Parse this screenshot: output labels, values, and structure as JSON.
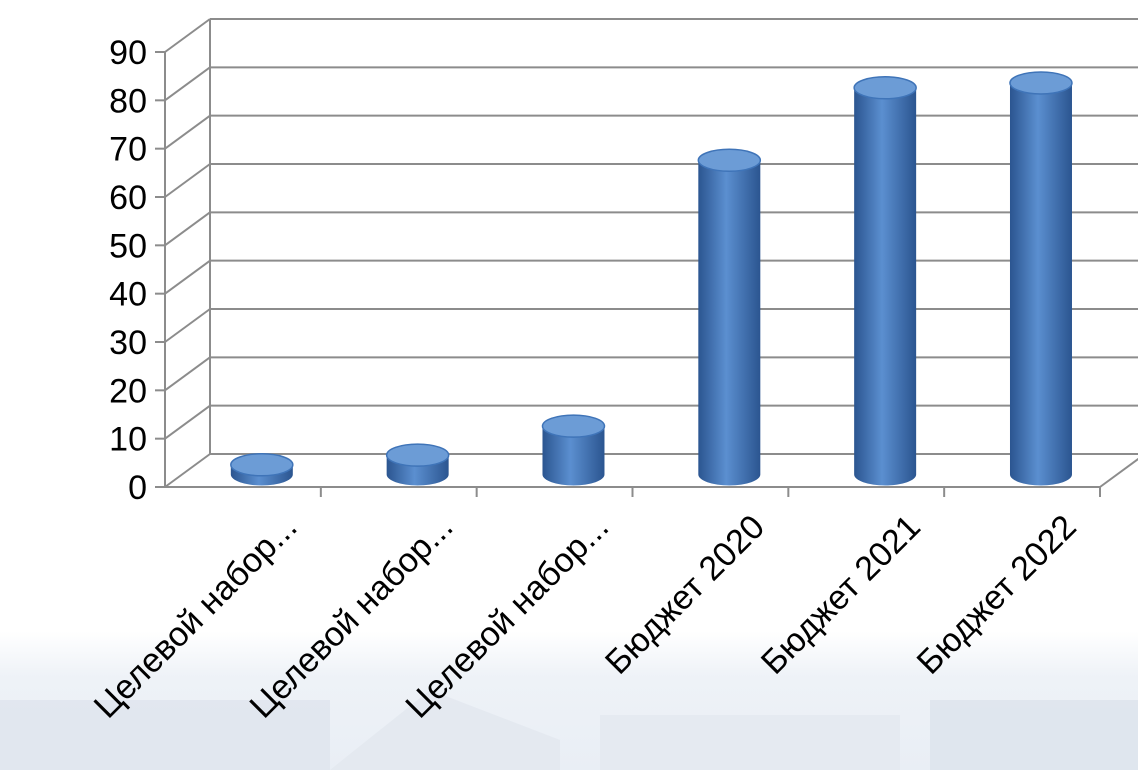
{
  "chart_data": {
    "type": "bar",
    "title": "",
    "xlabel": "",
    "ylabel": "",
    "categories": [
      "Целевой набор...",
      "Целевой набор...",
      "Целевой набор...",
      "Бюджет 2020",
      "Бюджет 2021",
      "Бюджет 2022"
    ],
    "values": [
      2,
      4,
      10,
      65,
      80,
      81
    ],
    "ylim": [
      0,
      90
    ],
    "yticks": [
      "0",
      "10",
      "20",
      "30",
      "40",
      "50",
      "60",
      "70",
      "80",
      "90"
    ],
    "grid": true,
    "legend": "none",
    "style": "3d-cylinder",
    "colors": {
      "bar_light": "#5b8fd0",
      "bar_mid": "#3f74b8",
      "bar_dark": "#2b5590",
      "bar_top": "#6c9cd6",
      "grid": "#8c8c8c"
    }
  }
}
